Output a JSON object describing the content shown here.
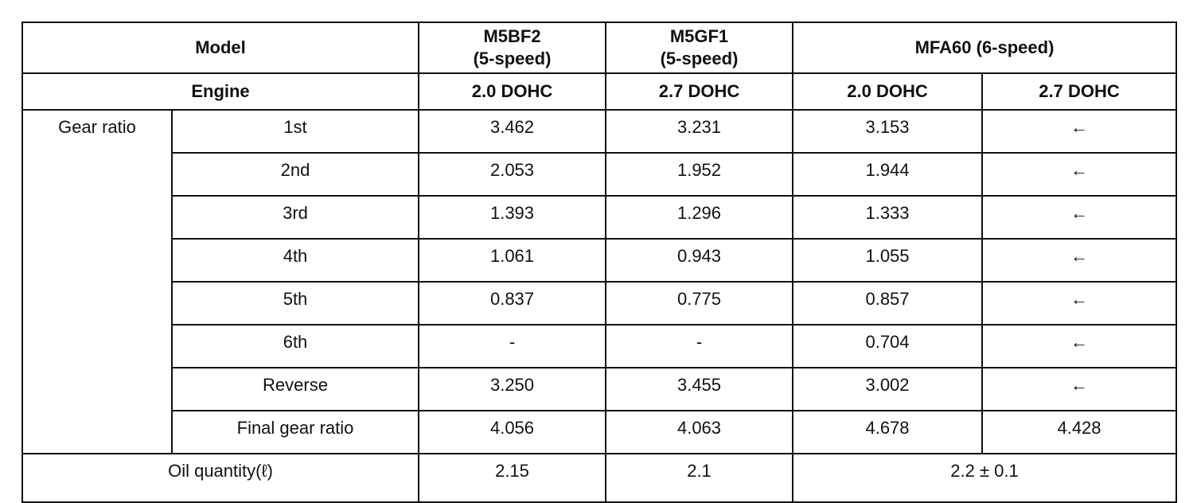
{
  "table": {
    "model_label": "Model",
    "models": [
      {
        "name": "M5BF2",
        "speeds": "(5-speed)"
      },
      {
        "name": "M5GF1",
        "speeds": "(5-speed)"
      },
      {
        "name": "MFA60 (6-speed)"
      }
    ],
    "engine_label": "Engine",
    "engines": [
      "2.0 DOHC",
      "2.7 DOHC",
      "2.0 DOHC",
      "2.7 DOHC"
    ],
    "gear_ratio_label": "Gear ratio",
    "rows": [
      {
        "label": "1st",
        "values": [
          "3.462",
          "3.231",
          "3.153",
          "←"
        ]
      },
      {
        "label": "2nd",
        "values": [
          "2.053",
          "1.952",
          "1.944",
          "←"
        ]
      },
      {
        "label": "3rd",
        "values": [
          "1.393",
          "1.296",
          "1.333",
          "←"
        ]
      },
      {
        "label": "4th",
        "values": [
          "1.061",
          "0.943",
          "1.055",
          "←"
        ]
      },
      {
        "label": "5th",
        "values": [
          "0.837",
          "0.775",
          "0.857",
          "←"
        ]
      },
      {
        "label": "6th",
        "values": [
          "-",
          "-",
          "0.704",
          "←"
        ]
      },
      {
        "label": "Reverse",
        "values": [
          "3.250",
          "3.455",
          "3.002",
          "←"
        ]
      },
      {
        "label": "Final gear ratio",
        "values": [
          "4.056",
          "4.063",
          "4.678",
          "4.428"
        ]
      }
    ],
    "oil_label": "Oil quantity(ℓ)",
    "oil_values": [
      "2.15",
      "2.1",
      "2.2 ± 0.1"
    ]
  }
}
